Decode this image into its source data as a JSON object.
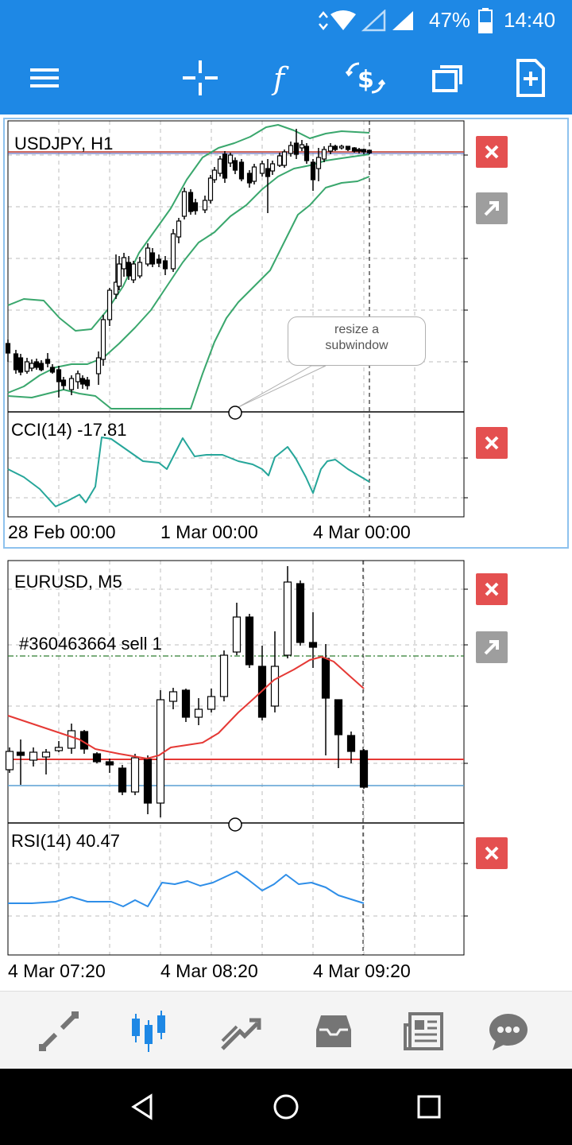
{
  "status_bar": {
    "battery": "47%",
    "time": "14:40"
  },
  "toolbar": {
    "icons": [
      "menu-icon",
      "crosshair-icon",
      "indicators-icon",
      "symbol-change-icon",
      "windows-icon",
      "new-order-icon"
    ]
  },
  "colors": {
    "app_bar": "#1e88e5",
    "bollinger": "#3aa76d",
    "cci_line": "#26a69a",
    "ma_line": "#e53935",
    "rsi_line": "#2e8ee8",
    "close_button": "#e45050",
    "active_nav": "#1e88e5"
  },
  "chart1": {
    "title": "USDJPY, H1",
    "indicator_label": "CCI(14) -17.81",
    "x_labels": [
      "28 Feb 00:00",
      "1 Mar 00:00",
      "4 Mar 00:00"
    ],
    "tooltip_line1": "resize a",
    "tooltip_line2": "subwindow"
  },
  "chart2": {
    "title": "EURUSD, M5",
    "order_label": "#360463664 sell 1",
    "indicator_label": "RSI(14) 40.47",
    "x_labels": [
      "4 Mar 07:20",
      "4 Mar 08:20",
      "4 Mar 09:20"
    ]
  },
  "bottom_nav": {
    "icons": [
      "quotes-icon",
      "charts-icon",
      "trade-icon",
      "history-icon",
      "news-icon",
      "chat-icon"
    ],
    "active": "charts-icon"
  },
  "system_nav": {
    "icons": [
      "back-icon",
      "home-icon",
      "recents-icon"
    ]
  }
}
